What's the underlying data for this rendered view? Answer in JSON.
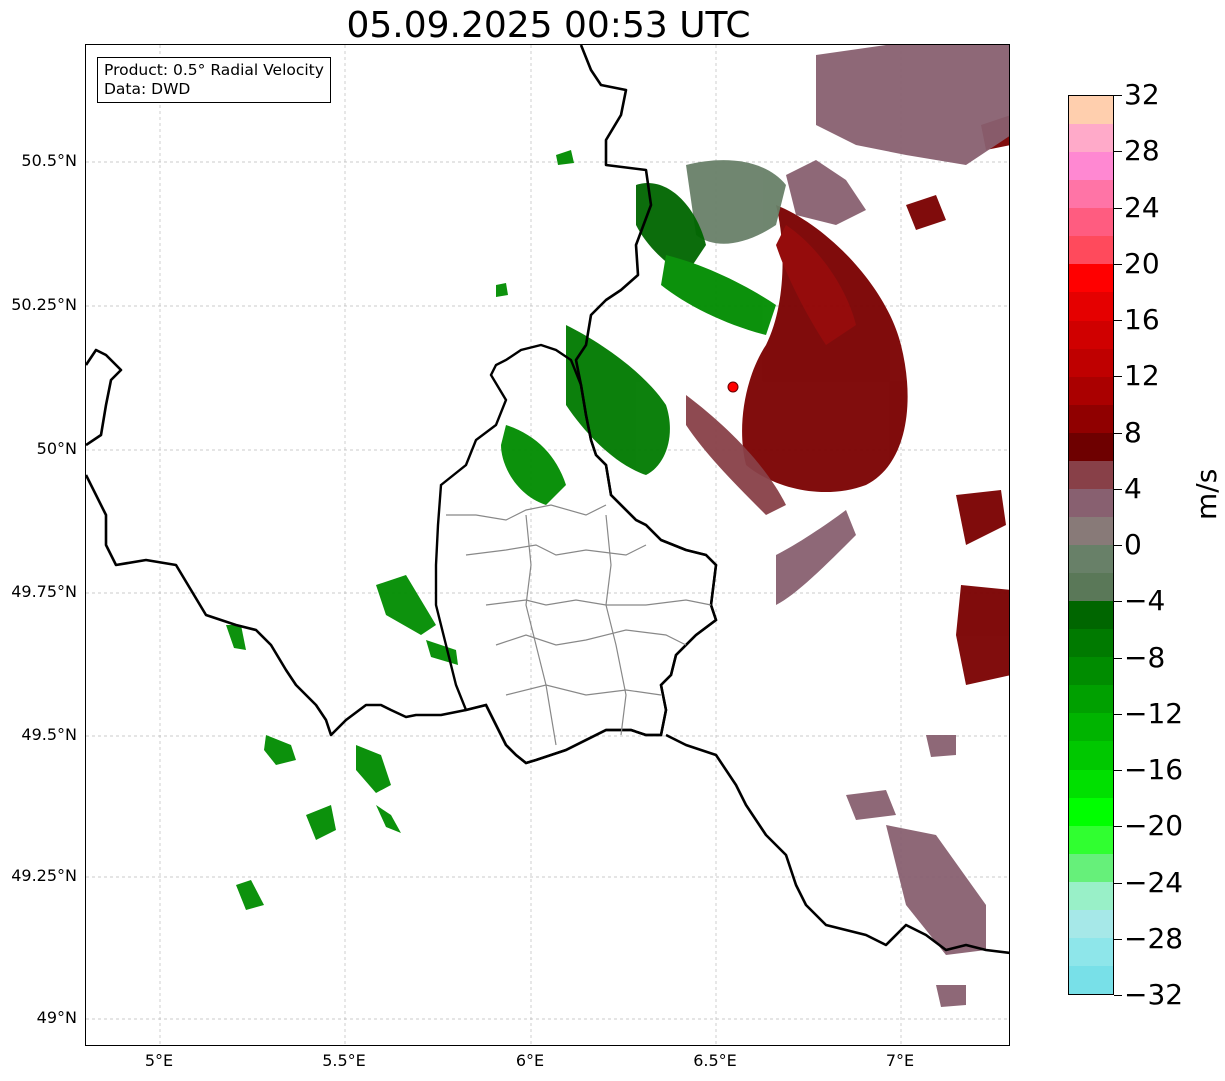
{
  "title": "05.09.2025 00:53 UTC",
  "info": {
    "product": "Product: 0.5° Radial Velocity",
    "source": "Data: DWD"
  },
  "axes": {
    "lat_ticks": [
      "50.5°N",
      "50.25°N",
      "50°N",
      "49.75°N",
      "49.5°N",
      "49.25°N",
      "49°N"
    ],
    "lon_ticks": [
      "5°E",
      "5.5°E",
      "6°E",
      "6.5°E",
      "7°E"
    ],
    "grid": true
  },
  "colorbar": {
    "unit": "m/s",
    "labels": [
      "32",
      "28",
      "24",
      "20",
      "16",
      "12",
      "8",
      "4",
      "0",
      "−4",
      "−8",
      "−12",
      "−16",
      "−20",
      "−24",
      "−28",
      "−32"
    ],
    "colors_top_to_bottom": [
      "#ffcfae",
      "#ffaac9",
      "#ff88d2",
      "#ff74a6",
      "#ff5c80",
      "#ff4a5c",
      "#ff0000",
      "#e50000",
      "#d00000",
      "#bf0000",
      "#aa0000",
      "#900000",
      "#6e0000",
      "#884048",
      "#886070",
      "#887a78",
      "#688068",
      "#5a7858",
      "#006600",
      "#007a00",
      "#008c00",
      "#00a000",
      "#00b400",
      "#00c800",
      "#00e000",
      "#00ff00",
      "#30ff30",
      "#66f07a",
      "#99f0c8",
      "#a6e8e8",
      "#8ee6ea",
      "#78e0e8"
    ]
  },
  "markers": [
    {
      "name": "radar-site",
      "color": "#ff0000"
    }
  ]
}
